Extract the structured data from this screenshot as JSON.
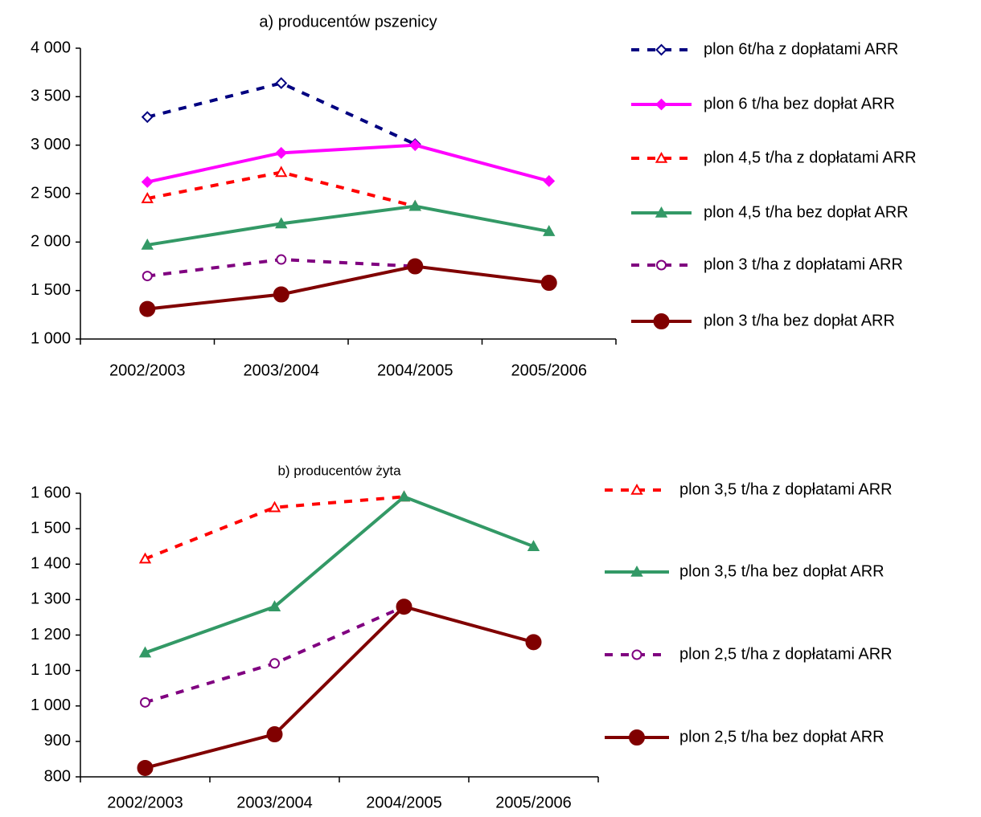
{
  "chart_data": [
    {
      "type": "line",
      "title": "a) producentów pszenicy",
      "categories": [
        "2002/2003",
        "2003/2004",
        "2004/2005",
        "2005/2006"
      ],
      "ylim": [
        1000,
        4000
      ],
      "yticks": [
        {
          "value": 1000,
          "label": "1 000"
        },
        {
          "value": 1500,
          "label": "1 500"
        },
        {
          "value": 2000,
          "label": "2 000"
        },
        {
          "value": 2500,
          "label": "2 500"
        },
        {
          "value": 3000,
          "label": "3 000"
        },
        {
          "value": 3500,
          "label": "3 500"
        },
        {
          "value": 4000,
          "label": "4 000"
        }
      ],
      "legend": "right",
      "series": [
        {
          "name": "plon 6t/ha z dopłatami ARR",
          "color": "#000080",
          "dashed": true,
          "marker": "diamond",
          "filled": false,
          "values": [
            3290,
            3640,
            3010,
            null
          ]
        },
        {
          "name": "plon 6 t/ha bez dopłat ARR",
          "color": "#ff00ff",
          "dashed": false,
          "marker": "diamond",
          "filled": true,
          "values": [
            2620,
            2920,
            3000,
            2630
          ]
        },
        {
          "name": "plon 4,5 t/ha z dopłatami ARR",
          "color": "#ff0000",
          "dashed": true,
          "marker": "triangle",
          "filled": false,
          "values": [
            2450,
            2720,
            2370,
            null
          ]
        },
        {
          "name": "plon 4,5 t/ha bez dopłat ARR",
          "color": "#339966",
          "dashed": false,
          "marker": "triangle",
          "filled": true,
          "values": [
            1970,
            2190,
            2370,
            2110
          ]
        },
        {
          "name": "plon 3 t/ha z dopłatami ARR",
          "color": "#800080",
          "dashed": true,
          "marker": "circle",
          "filled": false,
          "values": [
            1650,
            1820,
            1750,
            null
          ]
        },
        {
          "name": "plon 3 t/ha bez dopłat ARR",
          "color": "#800000",
          "dashed": false,
          "marker": "circle",
          "filled": true,
          "values": [
            1310,
            1460,
            1750,
            1580
          ]
        }
      ]
    },
    {
      "type": "line",
      "title": "b) producentów żyta",
      "categories": [
        "2002/2003",
        "2003/2004",
        "2004/2005",
        "2005/2006"
      ],
      "ylim": [
        800,
        1600
      ],
      "yticks": [
        800,
        900,
        {
          "value": 1000,
          "label": "1 000"
        },
        {
          "value": 1100,
          "label": "1 100"
        },
        {
          "value": 1200,
          "label": "1 200"
        },
        {
          "value": 1300,
          "label": "1 300"
        },
        {
          "value": 1400,
          "label": "1 400"
        },
        {
          "value": 1500,
          "label": "1 500"
        },
        {
          "value": 1600,
          "label": "1 600"
        }
      ],
      "legend": "right",
      "series": [
        {
          "name": "plon 3,5 t/ha z dopłatami ARR",
          "color": "#ff0000",
          "dashed": true,
          "marker": "triangle",
          "filled": false,
          "values": [
            1415,
            1560,
            1590,
            null
          ]
        },
        {
          "name": "plon 3,5 t/ha bez dopłat ARR",
          "color": "#339966",
          "dashed": false,
          "marker": "triangle",
          "filled": true,
          "values": [
            1150,
            1280,
            1590,
            1450
          ]
        },
        {
          "name": "plon 2,5 t/ha z dopłatami ARR",
          "color": "#800080",
          "dashed": true,
          "marker": "circle",
          "filled": false,
          "values": [
            1010,
            1120,
            1280,
            null
          ]
        },
        {
          "name": "plon 2,5 t/ha bez dopłat ARR",
          "color": "#800000",
          "dashed": false,
          "marker": "circle",
          "filled": true,
          "values": [
            825,
            920,
            1280,
            1180
          ]
        }
      ]
    }
  ]
}
